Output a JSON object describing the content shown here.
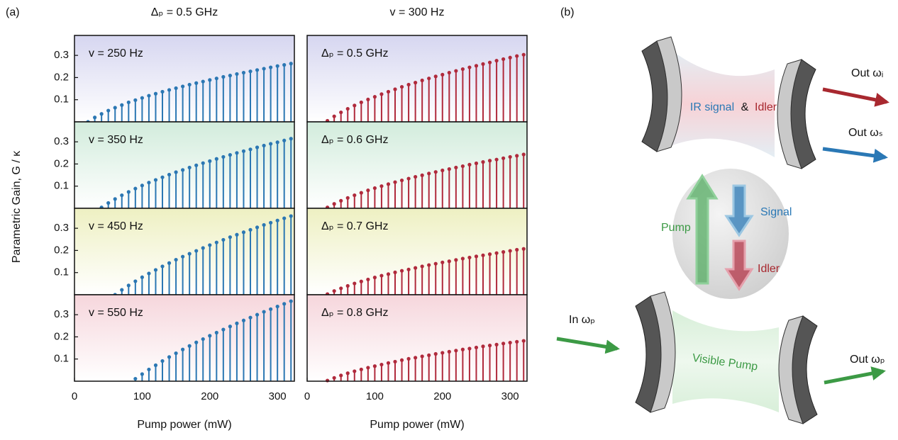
{
  "figure": {
    "label": "(a)",
    "column_titles": [
      "Δₚ = 0.5 GHz",
      "v = 300 Hz"
    ],
    "ylabel": "Parametric Gain, G / κ",
    "xlabels": [
      "Pump power (mW)",
      "Pump power (mW)"
    ]
  },
  "chart_data": [
    {
      "type": "stem",
      "annotation": "v = 250 Hz",
      "color": "#2b77b3",
      "background": "#d6d6f0",
      "xlim": [
        0,
        325
      ],
      "ylim": [
        0,
        0.39
      ],
      "yticks": [
        0.1,
        0.2,
        0.3
      ],
      "x": [
        20,
        30,
        40,
        50,
        60,
        70,
        80,
        90,
        100,
        110,
        120,
        130,
        140,
        150,
        160,
        170,
        180,
        190,
        200,
        210,
        220,
        230,
        240,
        250,
        260,
        270,
        280,
        290,
        300,
        310,
        320
      ],
      "values": [
        0,
        0.02,
        0.036,
        0.051,
        0.064,
        0.076,
        0.088,
        0.098,
        0.108,
        0.118,
        0.127,
        0.136,
        0.144,
        0.152,
        0.16,
        0.168,
        0.175,
        0.182,
        0.189,
        0.196,
        0.203,
        0.209,
        0.216,
        0.222,
        0.228,
        0.234,
        0.24,
        0.246,
        0.252,
        0.257,
        0.263
      ]
    },
    {
      "type": "stem",
      "annotation": "v = 350 Hz",
      "color": "#2b77b3",
      "background": "#d2ecdc",
      "xlim": [
        0,
        325
      ],
      "ylim": [
        0,
        0.39
      ],
      "yticks": [
        0.1,
        0.2,
        0.3
      ],
      "x": [
        40,
        50,
        60,
        70,
        80,
        90,
        100,
        110,
        120,
        130,
        140,
        150,
        160,
        170,
        180,
        190,
        200,
        210,
        220,
        230,
        240,
        250,
        260,
        270,
        280,
        290,
        300,
        310,
        320
      ],
      "values": [
        0.004,
        0.024,
        0.042,
        0.059,
        0.074,
        0.089,
        0.103,
        0.116,
        0.128,
        0.14,
        0.152,
        0.163,
        0.173,
        0.184,
        0.194,
        0.204,
        0.213,
        0.223,
        0.232,
        0.241,
        0.25,
        0.258,
        0.266,
        0.275,
        0.283,
        0.291,
        0.298,
        0.306,
        0.314
      ]
    },
    {
      "type": "stem",
      "annotation": "v = 450 Hz",
      "color": "#2b77b3",
      "background": "#eef0c2",
      "xlim": [
        0,
        325
      ],
      "ylim": [
        0,
        0.39
      ],
      "yticks": [
        0.1,
        0.2,
        0.3
      ],
      "x": [
        60,
        70,
        80,
        90,
        100,
        110,
        120,
        130,
        140,
        150,
        160,
        170,
        180,
        190,
        200,
        210,
        220,
        230,
        240,
        250,
        260,
        270,
        280,
        290,
        300,
        310,
        320
      ],
      "values": [
        0,
        0.022,
        0.042,
        0.061,
        0.079,
        0.096,
        0.112,
        0.128,
        0.143,
        0.158,
        0.172,
        0.185,
        0.198,
        0.211,
        0.224,
        0.236,
        0.248,
        0.26,
        0.271,
        0.282,
        0.293,
        0.304,
        0.315,
        0.325,
        0.335,
        0.345,
        0.355
      ]
    },
    {
      "type": "stem",
      "annotation": "v = 550 Hz",
      "color": "#2b77b3",
      "background": "#f6d6dc",
      "xlim": [
        0,
        325
      ],
      "ylim": [
        0,
        0.39
      ],
      "yticks": [
        0.1,
        0.2,
        0.3
      ],
      "xticks": [
        0,
        100,
        200,
        300
      ],
      "x": [
        90,
        100,
        110,
        120,
        130,
        140,
        150,
        160,
        170,
        180,
        190,
        200,
        210,
        220,
        230,
        240,
        250,
        260,
        270,
        280,
        290,
        300,
        310,
        320
      ],
      "values": [
        0.011,
        0.032,
        0.053,
        0.072,
        0.091,
        0.109,
        0.126,
        0.143,
        0.159,
        0.175,
        0.19,
        0.205,
        0.219,
        0.233,
        0.247,
        0.261,
        0.274,
        0.287,
        0.3,
        0.313,
        0.325,
        0.337,
        0.349,
        0.361
      ]
    },
    {
      "type": "stem",
      "annotation": "Δₚ = 0.5 GHz",
      "color": "#b02a3c",
      "background": "#d6d6f0",
      "xlim": [
        0,
        325
      ],
      "ylim": [
        0,
        0.39
      ],
      "x": [
        30,
        40,
        50,
        60,
        70,
        80,
        90,
        100,
        110,
        120,
        130,
        140,
        150,
        160,
        170,
        180,
        190,
        200,
        210,
        220,
        230,
        240,
        250,
        260,
        270,
        280,
        290,
        300,
        310,
        320
      ],
      "values": [
        0.005,
        0.025,
        0.043,
        0.059,
        0.074,
        0.088,
        0.101,
        0.113,
        0.125,
        0.136,
        0.147,
        0.158,
        0.168,
        0.177,
        0.187,
        0.196,
        0.205,
        0.213,
        0.222,
        0.23,
        0.238,
        0.246,
        0.253,
        0.261,
        0.268,
        0.276,
        0.283,
        0.29,
        0.297,
        0.303
      ]
    },
    {
      "type": "stem",
      "annotation": "Δₚ = 0.6 GHz",
      "color": "#b02a3c",
      "background": "#d2ecdc",
      "xlim": [
        0,
        325
      ],
      "ylim": [
        0,
        0.39
      ],
      "x": [
        30,
        40,
        50,
        60,
        70,
        80,
        90,
        100,
        110,
        120,
        130,
        140,
        150,
        160,
        170,
        180,
        190,
        200,
        210,
        220,
        230,
        240,
        250,
        260,
        270,
        280,
        290,
        300,
        310,
        320
      ],
      "values": [
        0.004,
        0.02,
        0.034,
        0.047,
        0.059,
        0.07,
        0.081,
        0.091,
        0.1,
        0.109,
        0.118,
        0.126,
        0.134,
        0.142,
        0.149,
        0.157,
        0.164,
        0.171,
        0.177,
        0.184,
        0.19,
        0.197,
        0.203,
        0.209,
        0.215,
        0.22,
        0.226,
        0.232,
        0.237,
        0.243
      ]
    },
    {
      "type": "stem",
      "annotation": "Δₚ = 0.7 GHz",
      "color": "#b02a3c",
      "background": "#eef0c2",
      "xlim": [
        0,
        325
      ],
      "ylim": [
        0,
        0.39
      ],
      "x": [
        30,
        40,
        50,
        60,
        70,
        80,
        90,
        100,
        110,
        120,
        130,
        140,
        150,
        160,
        170,
        180,
        190,
        200,
        210,
        220,
        230,
        240,
        250,
        260,
        270,
        280,
        290,
        300,
        310,
        320
      ],
      "values": [
        0.003,
        0.017,
        0.029,
        0.04,
        0.051,
        0.06,
        0.069,
        0.078,
        0.086,
        0.093,
        0.101,
        0.108,
        0.114,
        0.121,
        0.128,
        0.134,
        0.14,
        0.146,
        0.151,
        0.157,
        0.163,
        0.168,
        0.173,
        0.178,
        0.183,
        0.188,
        0.193,
        0.198,
        0.203,
        0.207
      ]
    },
    {
      "type": "stem",
      "annotation": "Δₚ = 0.8 GHz",
      "color": "#b02a3c",
      "background": "#f6d6dc",
      "xlim": [
        0,
        325
      ],
      "ylim": [
        0,
        0.39
      ],
      "xticks": [
        0,
        100,
        200,
        300
      ],
      "x": [
        30,
        40,
        50,
        60,
        70,
        80,
        90,
        100,
        110,
        120,
        130,
        140,
        150,
        160,
        170,
        180,
        190,
        200,
        210,
        220,
        230,
        240,
        250,
        260,
        270,
        280,
        290,
        300,
        310,
        320
      ],
      "values": [
        0.003,
        0.015,
        0.026,
        0.036,
        0.045,
        0.053,
        0.061,
        0.068,
        0.075,
        0.082,
        0.088,
        0.095,
        0.101,
        0.106,
        0.112,
        0.117,
        0.123,
        0.128,
        0.133,
        0.138,
        0.143,
        0.147,
        0.152,
        0.157,
        0.161,
        0.165,
        0.17,
        0.174,
        0.178,
        0.182
      ]
    }
  ],
  "diagram": {
    "label": "(b)",
    "out_idler": "Out ωᵢ",
    "out_signal": "Out ωₛ",
    "cavity_signal": "IR signal",
    "cavity_and": "&",
    "cavity_idler": "Idler",
    "pump": "Pump",
    "signal": "Signal",
    "idler": "Idler",
    "in_pump": "In ωₚ",
    "visible_pump": "Visible Pump",
    "out_pump": "Out ωₚ"
  }
}
